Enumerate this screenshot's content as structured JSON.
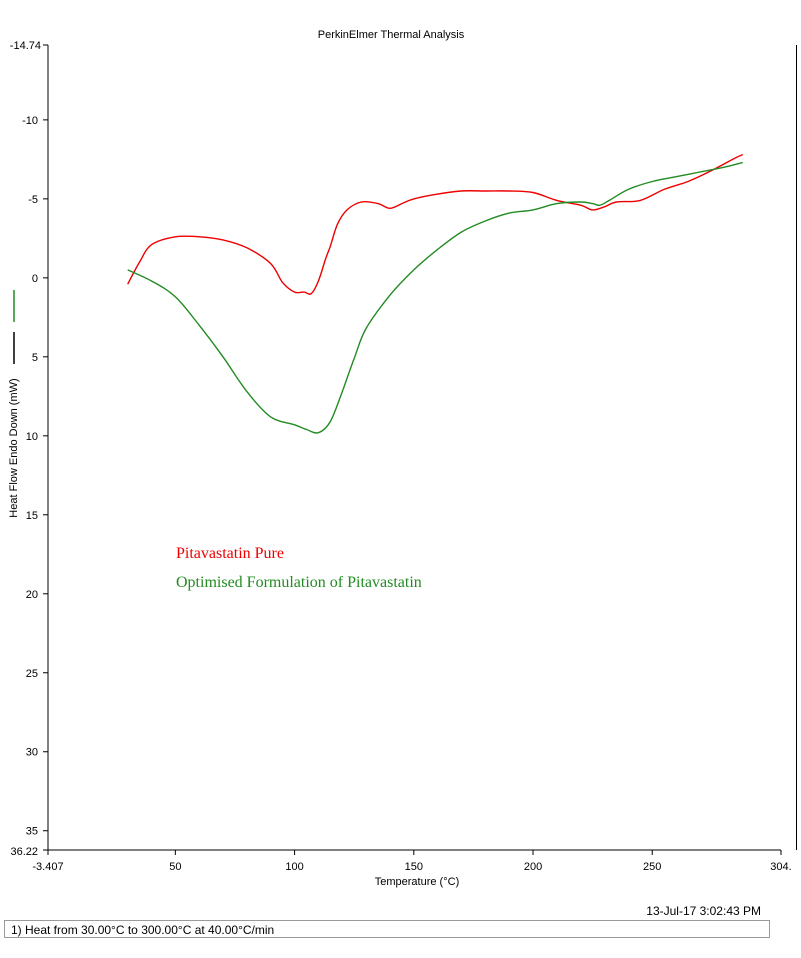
{
  "chart_data": {
    "type": "line",
    "title": "PerkinElmer Thermal Analysis",
    "xlabel": "Temperature (°C)",
    "ylabel": "Heat Flow Endo Down (mW)",
    "xlim": [
      -3.407,
      304
    ],
    "ylim": [
      36.22,
      -14.74
    ],
    "x_ticks": [
      50,
      100,
      150,
      200,
      250
    ],
    "x_tick_labels": [
      "-3.407",
      "50",
      "100",
      "150",
      "200",
      "250",
      "304."
    ],
    "y_ticks": [
      -10,
      -5,
      0,
      5,
      10,
      15,
      20,
      25,
      30,
      35
    ],
    "y_tick_labels": [
      "-14.74",
      "-10",
      "-5",
      "0",
      "5",
      "10",
      "15",
      "20",
      "25",
      "30",
      "35",
      "36.22"
    ],
    "grid": false,
    "y_inverted": true,
    "series": [
      {
        "name": "Pitavastatin Pure",
        "color": "#ee0000",
        "x": [
          30,
          35,
          40,
          50,
          60,
          70,
          80,
          90,
          95,
          100,
          104,
          107,
          110,
          113,
          115,
          118,
          122,
          128,
          135,
          140,
          145,
          150,
          160,
          170,
          180,
          190,
          200,
          210,
          220,
          225,
          230,
          235,
          245,
          255,
          265,
          275,
          285,
          288
        ],
        "y": [
          0.4,
          -1.0,
          -2.1,
          -2.6,
          -2.6,
          -2.4,
          -1.9,
          -0.9,
          0.3,
          0.9,
          0.9,
          1.0,
          0.2,
          -1.2,
          -2.0,
          -3.4,
          -4.3,
          -4.8,
          -4.7,
          -4.4,
          -4.7,
          -5.0,
          -5.3,
          -5.5,
          -5.5,
          -5.5,
          -5.4,
          -4.9,
          -4.6,
          -4.3,
          -4.5,
          -4.8,
          -4.9,
          -5.6,
          -6.1,
          -6.8,
          -7.6,
          -7.8
        ]
      },
      {
        "name": "Optimised Formulation of Pitavastatin",
        "color": "#228b22",
        "x": [
          30,
          40,
          50,
          60,
          70,
          80,
          90,
          100,
          105,
          110,
          115,
          120,
          125,
          130,
          140,
          150,
          160,
          170,
          180,
          190,
          200,
          210,
          220,
          225,
          228,
          232,
          240,
          250,
          260,
          270,
          280,
          288
        ],
        "y": [
          -0.5,
          0.2,
          1.2,
          3.0,
          5.0,
          7.2,
          8.8,
          9.3,
          9.6,
          9.8,
          9.1,
          7.2,
          5.1,
          3.2,
          1.1,
          -0.5,
          -1.8,
          -2.9,
          -3.6,
          -4.1,
          -4.3,
          -4.7,
          -4.8,
          -4.7,
          -4.6,
          -4.9,
          -5.6,
          -6.1,
          -6.4,
          -6.7,
          -7.0,
          -7.3
        ]
      }
    ],
    "legend": [
      "Pitavastatin Pure",
      "Optimised Formulation of Pitavastatin"
    ]
  },
  "footer": {
    "timestamp": "13-Jul-17 3:02:43 PM",
    "method_step": "1)  Heat from 30.00°C to 300.00°C at 40.00°C/min"
  }
}
